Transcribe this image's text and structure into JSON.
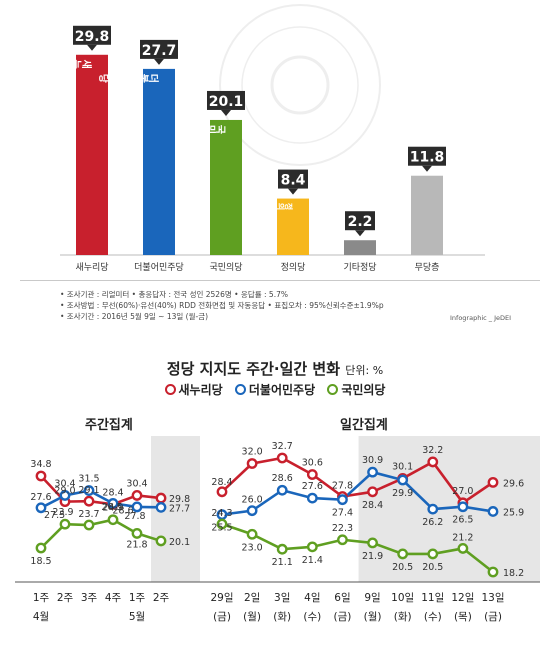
{
  "colors": {
    "saenuri": "#c8202d",
    "minjoo": "#1a66bb",
    "kookmin": "#5f9f21",
    "justice": "#f6b71c",
    "other": "#8a8a8a",
    "none": "#b8b8b8",
    "label_bg": "#2b2b2b",
    "shade": "#e6e6e6"
  },
  "bar_chart": {
    "type": "bar",
    "categories": [
      "새누리당",
      "더불어민주당",
      "국민의당",
      "정의당",
      "기타정당",
      "무당층"
    ],
    "values": [
      29.8,
      27.7,
      20.1,
      8.4,
      2.2,
      11.8
    ],
    "value_labels": [
      "29.8",
      "27.7",
      "20.1",
      "8.4",
      "2.2",
      "11.8"
    ],
    "bar_texts": [
      "새누리당",
      "더불어민주당",
      "국민의당",
      "정의당",
      "",
      ""
    ],
    "ylim": [
      0,
      32
    ]
  },
  "survey": {
    "line1": "• 조사기관 : 리얼미터   • 총응답자 : 전국 성인 2526명   • 응답률 : 5.7%",
    "line2": "• 조사방법 : 무선(60%)·유선(40%) RDD 전화면접 및 자동응답   • 표집오차 : 95%신뢰수준±1.9%p",
    "line3": "• 조사기간 : 2016년 5월 9일 ~ 13일 (월-금)",
    "credit": "Infographic _ JeDEI"
  },
  "line_section": {
    "title": "정당 지지도 주간·일간 변화",
    "unit": "단위: %",
    "legend": [
      "새누리당",
      "더불어민주당",
      "국민의당"
    ]
  },
  "chart_data": [
    {
      "type": "line",
      "title": "주간집계",
      "categories": [
        "1주",
        "2주",
        "3주",
        "4주",
        "1주",
        "2주"
      ],
      "month_labels": [
        "4월",
        "5월"
      ],
      "series": [
        {
          "name": "새누리당",
          "values": [
            34.8,
            29.0,
            29.1,
            28.4,
            30.4,
            29.8
          ],
          "labels": [
            "34.8",
            "29.0",
            "29.1",
            "28.4",
            "30.4",
            "29.8"
          ]
        },
        {
          "name": "더불어민주당",
          "values": [
            27.6,
            30.4,
            31.5,
            28.6,
            27.8,
            27.7
          ],
          "labels": [
            "27.6",
            "30.4",
            "31.5",
            "",
            "27.8",
            "27.7"
          ]
        },
        {
          "name": "국민의당",
          "values": [
            18.5,
            23.9,
            23.7,
            24.9,
            21.8,
            20.1
          ],
          "labels": [
            "18.5",
            "23.9",
            "23.7",
            "24.9",
            "21.8",
            "20.1"
          ]
        }
      ],
      "extra_labels": [
        "27.5",
        "28.6",
        "26.5"
      ],
      "shaded_from_index": 5
    },
    {
      "type": "line",
      "title": "일간집계",
      "categories": [
        "29일",
        "2일",
        "3일",
        "4일",
        "6일",
        "9일",
        "10일",
        "11일",
        "12일",
        "13일"
      ],
      "days": [
        "(금)",
        "(월)",
        "(화)",
        "(수)",
        "(금)",
        "(월)",
        "(화)",
        "(수)",
        "(목)",
        "(금)"
      ],
      "series": [
        {
          "name": "새누리당",
          "values": [
            28.4,
            32.0,
            32.7,
            30.6,
            27.8,
            28.4,
            30.1,
            32.2,
            27.0,
            29.6
          ],
          "labels": [
            "28.4",
            "32.0",
            "32.7",
            "30.6",
            "27.8",
            "28.4",
            "30.1",
            "32.2",
            "27.0",
            "29.6"
          ]
        },
        {
          "name": "더불어민주당",
          "values": [
            25.5,
            26.0,
            28.6,
            27.6,
            27.4,
            30.9,
            29.9,
            26.2,
            26.5,
            25.9
          ],
          "labels": [
            "25.5",
            "26.0",
            "28.6",
            "27.6",
            "27.4",
            "30.9",
            "29.9",
            "26.2",
            "26.5",
            "25.9"
          ]
        },
        {
          "name": "국민의당",
          "values": [
            24.3,
            23.0,
            21.1,
            21.4,
            22.3,
            21.9,
            20.5,
            20.5,
            21.2,
            18.2
          ],
          "labels": [
            "24.3",
            "23.0",
            "21.1",
            "21.4",
            "22.3",
            "21.9",
            "20.5",
            "20.5",
            "21.2",
            "18.2"
          ]
        }
      ],
      "shaded_from_index": 5
    }
  ]
}
